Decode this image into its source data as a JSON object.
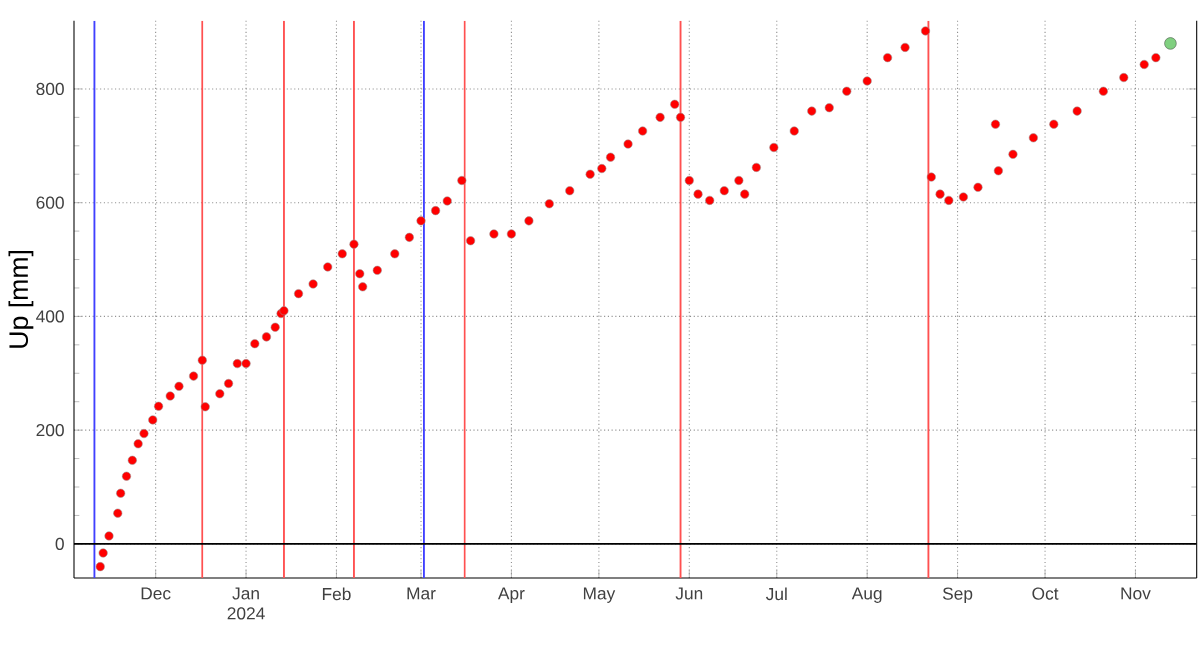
{
  "chart_data": {
    "type": "scatter",
    "ylabel": "Up [mm]",
    "xlim": [
      "2023-11-03",
      "2024-11-22"
    ],
    "ylim": [
      -60,
      920
    ],
    "xticks": [
      {
        "value": "2023-12-01",
        "label": "Dec"
      },
      {
        "value": "2024-01-01",
        "label": "Jan 2024"
      },
      {
        "value": "2024-02-01",
        "label": "Feb"
      },
      {
        "value": "2024-03-01",
        "label": "Mar"
      },
      {
        "value": "2024-04-01",
        "label": "Apr"
      },
      {
        "value": "2024-05-01",
        "label": "May"
      },
      {
        "value": "2024-06-01",
        "label": "Jun"
      },
      {
        "value": "2024-07-01",
        "label": "Jul"
      },
      {
        "value": "2024-08-01",
        "label": "Aug"
      },
      {
        "value": "2024-09-01",
        "label": "Sep"
      },
      {
        "value": "2024-10-01",
        "label": "Oct"
      },
      {
        "value": "2024-11-01",
        "label": "Nov"
      }
    ],
    "yticks": [
      0,
      200,
      400,
      600,
      800
    ],
    "grid": true,
    "series": [
      {
        "color": "#ff0000",
        "x": [
          "2023-11-12",
          "2023-11-13",
          "2023-11-15",
          "2023-11-18",
          "2023-11-19",
          "2023-11-21",
          "2023-11-23",
          "2023-11-25",
          "2023-11-27",
          "2023-11-30",
          "2023-12-02",
          "2023-12-06",
          "2023-12-09",
          "2023-12-14",
          "2023-12-17",
          "2023-12-18",
          "2023-12-23",
          "2023-12-26",
          "2023-12-29",
          "2024-01-01",
          "2024-01-04",
          "2024-01-08",
          "2024-01-11",
          "2024-01-13",
          "2024-01-14",
          "2024-01-19",
          "2024-01-24",
          "2024-01-29",
          "2024-02-03",
          "2024-02-07",
          "2024-02-09",
          "2024-02-10",
          "2024-02-15",
          "2024-02-21",
          "2024-02-26",
          "2024-03-01",
          "2024-03-06",
          "2024-03-10",
          "2024-03-15",
          "2024-03-18",
          "2024-03-26",
          "2024-04-01",
          "2024-04-07",
          "2024-04-14",
          "2024-04-21",
          "2024-04-28",
          "2024-05-02",
          "2024-05-05",
          "2024-05-11",
          "2024-05-16",
          "2024-05-22",
          "2024-05-27",
          "2024-05-29",
          "2024-06-01",
          "2024-06-04",
          "2024-06-08",
          "2024-06-13",
          "2024-06-18",
          "2024-06-20",
          "2024-06-24",
          "2024-06-30",
          "2024-07-07",
          "2024-07-13",
          "2024-07-19",
          "2024-07-25",
          "2024-08-01",
          "2024-08-08",
          "2024-08-14",
          "2024-08-21",
          "2024-08-23",
          "2024-08-26",
          "2024-08-29",
          "2024-09-03",
          "2024-09-08",
          "2024-09-14",
          "2024-09-15",
          "2024-09-20",
          "2024-09-27",
          "2024-10-04",
          "2024-10-12",
          "2024-10-21",
          "2024-10-28",
          "2024-11-04",
          "2024-11-08"
        ],
        "values": [
          -40,
          -16,
          14,
          54,
          89,
          119,
          147,
          176,
          194,
          218,
          242,
          260,
          277,
          295,
          323,
          241,
          264,
          282,
          317,
          317,
          352,
          364,
          381,
          405,
          410,
          440,
          457,
          487,
          510,
          527,
          475,
          452,
          481,
          510,
          539,
          568,
          586,
          603,
          639,
          533,
          545,
          545,
          568,
          598,
          621,
          650,
          660,
          680,
          703,
          726,
          750,
          773,
          750,
          639,
          615,
          604,
          621,
          639,
          615,
          662,
          697,
          726,
          761,
          767,
          796,
          814,
          855,
          873,
          902,
          645,
          615,
          604,
          610,
          627,
          738,
          656,
          685,
          714,
          738,
          761,
          796,
          820,
          843,
          855
        ]
      },
      {
        "color": "#80d080",
        "x": [
          "2024-11-13"
        ],
        "values": [
          880
        ]
      }
    ],
    "ref_lines": [
      {
        "axis": "x",
        "value": "2023-11-10",
        "color": "#4040ff"
      },
      {
        "axis": "x",
        "value": "2023-12-17",
        "color": "#ff5050"
      },
      {
        "axis": "x",
        "value": "2024-01-14",
        "color": "#ff5050"
      },
      {
        "axis": "x",
        "value": "2024-02-07",
        "color": "#ff5050"
      },
      {
        "axis": "x",
        "value": "2024-03-02",
        "color": "#4040ff"
      },
      {
        "axis": "x",
        "value": "2024-03-16",
        "color": "#ff5050"
      },
      {
        "axis": "x",
        "value": "2024-05-29",
        "color": "#ff5050"
      },
      {
        "axis": "x",
        "value": "2024-08-22",
        "color": "#ff5050"
      },
      {
        "axis": "y",
        "value": 0,
        "color": "#000000"
      }
    ]
  }
}
